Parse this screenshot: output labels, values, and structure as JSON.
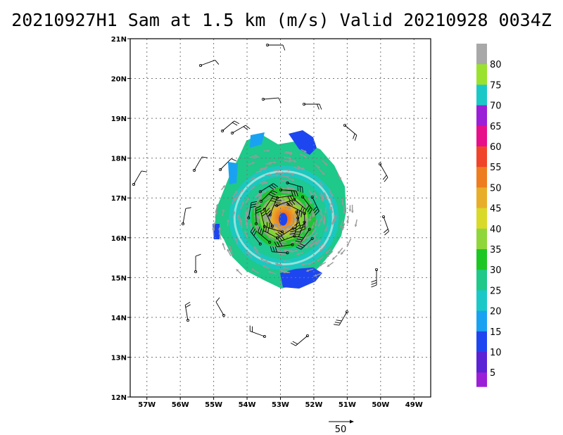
{
  "title": "20210927H1 Sam at 1.5 km (m/s) Valid 20210928 0034Z",
  "map": {
    "lat_labels": [
      "21N",
      "20N",
      "19N",
      "18N",
      "17N",
      "16N",
      "15N",
      "14N",
      "13N",
      "12N"
    ],
    "lon_labels": [
      "57W",
      "56W",
      "55W",
      "54W",
      "53W",
      "52W",
      "51W",
      "50W",
      "49W"
    ],
    "lat_range": [
      12,
      21
    ],
    "lon_range": [
      -57.5,
      -48.5
    ],
    "grid": "dotted",
    "storm_center": {
      "lon": -52.9,
      "lat": 16.5
    }
  },
  "colorbar": {
    "labels": [
      "80",
      "75",
      "70",
      "65",
      "60",
      "55",
      "50",
      "45",
      "40",
      "35",
      "30",
      "25",
      "20",
      "15",
      "10",
      "5"
    ],
    "colors": {
      "0-5": "#9b1fd6",
      "5-10": "#5b22d6",
      "10-15": "#1e46f0",
      "15-20": "#1aa2f2",
      "20-25": "#1bc8c8",
      "25-30": "#1ec98a",
      "30-35": "#1dc723",
      "35-40": "#8fd63a",
      "40-45": "#d9d92a",
      "45-50": "#e8ae2a",
      "50-55": "#ee7d1f",
      "55-60": "#f0452a",
      "60-65": "#e8108a",
      "65-70": "#9b1fd6",
      "70-75": "#1bc8c8",
      "75-80": "#9be22e",
      "80+": "#a8a8a8"
    }
  },
  "reference_vector": {
    "label": "50"
  }
}
